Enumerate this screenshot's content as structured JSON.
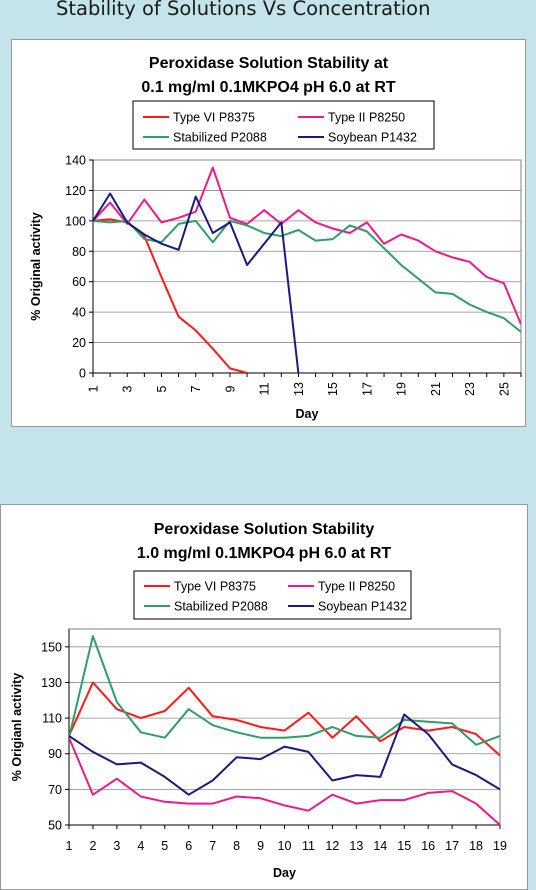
{
  "page": {
    "title": "Stability of Solutions Vs Concentration"
  },
  "chart_data": [
    {
      "type": "line",
      "title_line1": "Peroxidase Solution Stability at",
      "title_line2": "0.1 mg/ml 0.1MKPO4 pH 6.0 at RT",
      "xlabel": "Day",
      "ylabel": "% Original activity",
      "xlim": [
        1,
        26
      ],
      "ylim": [
        0,
        140
      ],
      "y_ticks": [
        0,
        20,
        40,
        60,
        80,
        100,
        120,
        140
      ],
      "x_ticks": [
        1,
        3,
        5,
        7,
        9,
        11,
        13,
        15,
        17,
        19,
        21,
        23,
        25
      ],
      "x_tick_rotation": "vertical",
      "grid": "horizontal",
      "legend_position": "top-center",
      "plot_background": "#ffffff",
      "series": [
        {
          "name": "Type VI P8375",
          "color": "#ff1a1a",
          "x": [
            1,
            2,
            3,
            4,
            5,
            6,
            7,
            8,
            9,
            10
          ],
          "values": [
            100,
            101,
            99,
            90,
            63,
            37,
            28,
            16,
            3,
            0
          ]
        },
        {
          "name": "Type II P8250",
          "color": "#ec1a8c",
          "x": [
            1,
            2,
            3,
            4,
            5,
            6,
            7,
            8,
            9,
            10,
            11,
            12,
            13,
            14,
            15,
            16,
            17,
            18,
            19,
            20,
            21,
            22,
            23,
            24,
            25,
            26
          ],
          "values": [
            100,
            112,
            98,
            114,
            99,
            102,
            106,
            135,
            102,
            98,
            107,
            98,
            107,
            99,
            95,
            92,
            99,
            85,
            91,
            87,
            80,
            76,
            73,
            63,
            59,
            32
          ]
        },
        {
          "name": "Stabilized P2088",
          "color": "#2e9e6b",
          "x": [
            1,
            2,
            3,
            4,
            5,
            6,
            7,
            8,
            9,
            10,
            11,
            12,
            13,
            14,
            15,
            16,
            17,
            18,
            19,
            20,
            21,
            22,
            23,
            24,
            25,
            26
          ],
          "values": [
            100,
            99,
            100,
            88,
            86,
            98,
            100,
            86,
            100,
            97,
            92,
            90,
            94,
            87,
            88,
            97,
            93,
            82,
            71,
            62,
            53,
            52,
            45,
            40,
            36,
            27
          ]
        },
        {
          "name": "Soybean P1432",
          "color": "#1a1a80",
          "x": [
            1,
            2,
            3,
            4,
            5,
            6,
            7,
            8,
            9,
            10,
            11,
            12,
            13
          ],
          "values": [
            100,
            118,
            99,
            91,
            85,
            81,
            116,
            92,
            99,
            71,
            85,
            99,
            0
          ]
        }
      ]
    },
    {
      "type": "line",
      "title_line1": "Peroxidase Solution Stability",
      "title_line2": "1.0 mg/ml 0.1MKPO4 pH 6.0 at RT",
      "xlabel": "Day",
      "ylabel": "% Origianl activity",
      "xlim": [
        1,
        19
      ],
      "ylim": [
        50,
        160
      ],
      "y_ticks": [
        50,
        70,
        90,
        110,
        130,
        150
      ],
      "x_ticks": [
        1,
        2,
        3,
        4,
        5,
        6,
        7,
        8,
        9,
        10,
        11,
        12,
        13,
        14,
        15,
        16,
        17,
        18,
        19
      ],
      "grid": "horizontal",
      "legend_position": "top-center",
      "plot_background": "#ffffff",
      "series": [
        {
          "name": "Type VI P8375",
          "color": "#ff1a1a",
          "x": [
            1,
            2,
            3,
            4,
            5,
            6,
            7,
            8,
            9,
            10,
            11,
            12,
            13,
            14,
            15,
            16,
            17,
            18,
            19
          ],
          "values": [
            100,
            130,
            115,
            110,
            114,
            127,
            111,
            109,
            105,
            103,
            113,
            99,
            111,
            97,
            105,
            103,
            105,
            101,
            89
          ]
        },
        {
          "name": "Type II P8250",
          "color": "#ec1a8c",
          "x": [
            1,
            2,
            3,
            4,
            5,
            6,
            7,
            8,
            9,
            10,
            11,
            12,
            13,
            14,
            15,
            16,
            17,
            18,
            19
          ],
          "values": [
            99,
            67,
            76,
            66,
            63,
            62,
            62,
            66,
            65,
            61,
            58,
            67,
            62,
            64,
            64,
            68,
            69,
            62,
            49
          ]
        },
        {
          "name": "Stabilized P2088",
          "color": "#2e9e6b",
          "x": [
            1,
            2,
            3,
            4,
            5,
            6,
            7,
            8,
            9,
            10,
            11,
            12,
            13,
            14,
            15,
            16,
            17,
            18,
            19
          ],
          "values": [
            99,
            156,
            119,
            102,
            99,
            115,
            106,
            102,
            99,
            99,
            100,
            105,
            100,
            99,
            109,
            108,
            107,
            95,
            100
          ]
        },
        {
          "name": "Soybean P1432",
          "color": "#1a1a80",
          "x": [
            1,
            2,
            3,
            4,
            5,
            6,
            7,
            8,
            9,
            10,
            11,
            12,
            13,
            14,
            15,
            16,
            17,
            18,
            19
          ],
          "values": [
            100,
            91,
            84,
            85,
            77,
            67,
            75,
            88,
            87,
            94,
            91,
            75,
            78,
            77,
            112,
            101,
            84,
            78,
            70
          ]
        }
      ]
    }
  ]
}
